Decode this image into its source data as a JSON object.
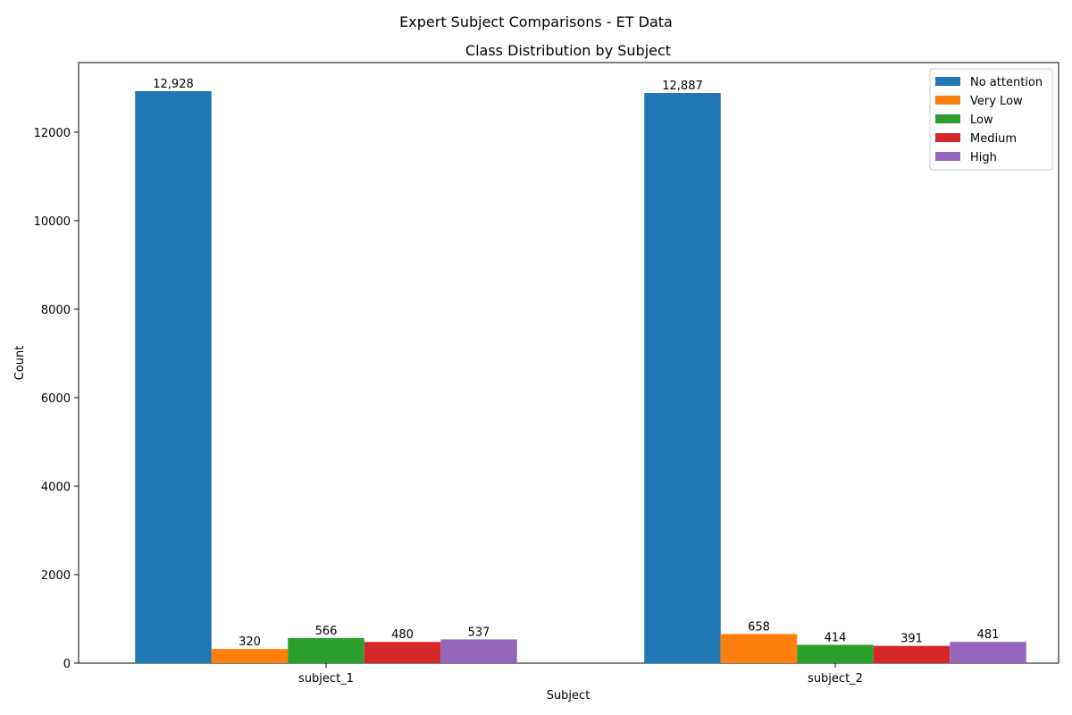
{
  "figure": {
    "suptitle": "Expert Subject Comparisons - ET Data"
  },
  "chart_data": {
    "type": "bar",
    "title": "Class Distribution by Subject",
    "xlabel": "Subject",
    "ylabel": "Count",
    "categories": [
      "subject_1",
      "subject_2"
    ],
    "ylim": [
      0,
      13574
    ],
    "yticks": [
      0,
      2000,
      4000,
      6000,
      8000,
      10000,
      12000
    ],
    "grid": false,
    "legend_position": "top-right",
    "series": [
      {
        "name": "No attention",
        "color": "#1f77b4",
        "values": [
          12928,
          12887
        ],
        "labels": [
          "12,928",
          "12,887"
        ]
      },
      {
        "name": "Very Low",
        "color": "#ff7f0e",
        "values": [
          320,
          658
        ],
        "labels": [
          "320",
          "658"
        ]
      },
      {
        "name": "Low",
        "color": "#2ca02c",
        "values": [
          566,
          414
        ],
        "labels": [
          "566",
          "414"
        ]
      },
      {
        "name": "Medium",
        "color": "#d62728",
        "values": [
          480,
          391
        ],
        "labels": [
          "480",
          "391"
        ]
      },
      {
        "name": "High",
        "color": "#9467bd",
        "values": [
          537,
          481
        ],
        "labels": [
          "537",
          "481"
        ]
      }
    ]
  }
}
